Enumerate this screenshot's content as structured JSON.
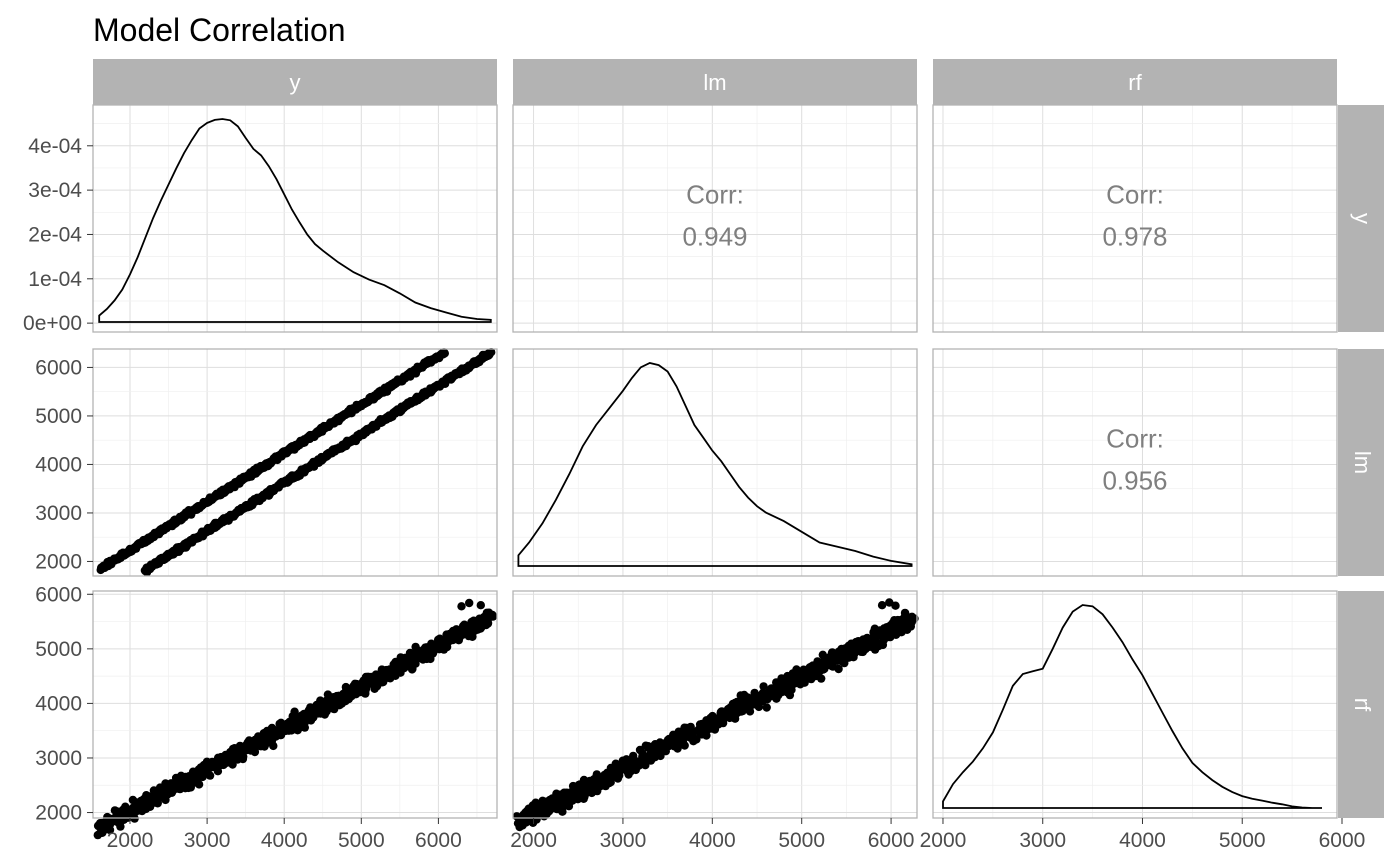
{
  "title": "Model Correlation",
  "strips": {
    "columns": [
      "y",
      "lm",
      "rf"
    ],
    "rows": [
      "y",
      "lm",
      "rf"
    ]
  },
  "colors": {
    "strip_bg": "#b3b3b3",
    "strip_text": "#ffffff",
    "points": "#000000",
    "grid": "#dedede",
    "corr_text": "#7f7f7f"
  },
  "chart_data": {
    "type": "scatter",
    "subtype": "pairs-matrix",
    "variables": [
      "y",
      "lm",
      "rf"
    ],
    "x_ranges": {
      "y": [
        1520,
        6760
      ],
      "lm": [
        1770,
        6290
      ],
      "rf": [
        1900,
        5950
      ]
    },
    "x_ticks": {
      "y": [
        2000,
        3000,
        4000,
        5000,
        6000
      ],
      "lm": [
        2000,
        3000,
        4000,
        5000,
        6000
      ],
      "rf": [
        2000,
        3000,
        4000,
        5000,
        6000
      ]
    },
    "y_ranges": {
      "y": [
        -2e-05,
        0.000492
      ],
      "lm": [
        1700,
        6380
      ],
      "rf": [
        1900,
        6060
      ]
    },
    "y_ticks": {
      "y": [
        0,
        0.0001,
        0.0002,
        0.0003,
        0.0004
      ],
      "lm": [
        2000,
        3000,
        4000,
        5000,
        6000
      ],
      "rf": [
        2000,
        3000,
        4000,
        5000,
        6000
      ]
    },
    "y_tick_labels": {
      "y": [
        "0e+00",
        "1e-04",
        "2e-04",
        "3e-04",
        "4e-04"
      ],
      "lm": [
        "2000",
        "3000",
        "4000",
        "5000",
        "6000"
      ],
      "rf": [
        "2000",
        "3000",
        "4000",
        "5000",
        "6000"
      ]
    },
    "correlations": [
      {
        "row": "y",
        "col": "lm",
        "label": "Corr:",
        "value": "0.949"
      },
      {
        "row": "y",
        "col": "rf",
        "label": "Corr:",
        "value": "0.978"
      },
      {
        "row": "lm",
        "col": "rf",
        "label": "Corr:",
        "value": "0.956"
      }
    ],
    "densities": {
      "y": {
        "x": [
          1600,
          1700,
          1800,
          1900,
          2000,
          2100,
          2200,
          2300,
          2400,
          2500,
          2600,
          2700,
          2800,
          2900,
          3000,
          3100,
          3200,
          3300,
          3400,
          3500,
          3600,
          3700,
          3800,
          3900,
          4000,
          4100,
          4200,
          4300,
          4400,
          4500,
          4700,
          4900,
          5100,
          5300,
          5500,
          5700,
          5900,
          6100,
          6300,
          6500,
          6680
        ],
        "density": [
          1.5e-05,
          3e-05,
          5e-05,
          7.5e-05,
          0.00011,
          0.00015,
          0.000195,
          0.00024,
          0.00028,
          0.000318,
          0.000355,
          0.00039,
          0.00042,
          0.000447,
          0.00046,
          0.000467,
          0.000469,
          0.000466,
          0.000452,
          0.000425,
          0.0004,
          0.000385,
          0.00036,
          0.00033,
          0.000295,
          0.00026,
          0.00023,
          0.000202,
          0.00018,
          0.000165,
          0.000138,
          0.000115,
          9.8e-05,
          8.5e-05,
          6.6e-05,
          4.5e-05,
          3.2e-05,
          2.2e-05,
          1.2e-05,
          7e-06,
          5e-06
        ]
      },
      "lm": {
        "x": [
          1830,
          1950,
          2100,
          2250,
          2400,
          2550,
          2700,
          2850,
          3000,
          3100,
          3200,
          3300,
          3400,
          3500,
          3600,
          3700,
          3800,
          3900,
          4000,
          4100,
          4200,
          4300,
          4400,
          4500,
          4600,
          4800,
          5000,
          5200,
          5400,
          5600,
          5800,
          6000,
          6230
        ],
        "density": [
          2.5e-05,
          5.5e-05,
          0.0001,
          0.000155,
          0.000215,
          0.00028,
          0.00033,
          0.00037,
          0.00041,
          0.00044,
          0.000465,
          0.000475,
          0.00047,
          0.000455,
          0.00042,
          0.000375,
          0.00033,
          0.0003,
          0.00027,
          0.000245,
          0.000215,
          0.000185,
          0.00016,
          0.00014,
          0.000125,
          0.000105,
          8e-05,
          5.5e-05,
          4.5e-05,
          3.5e-05,
          2.2e-05,
          1.2e-05,
          4e-06
        ]
      },
      "rf": {
        "x": [
          2000,
          2100,
          2200,
          2300,
          2400,
          2500,
          2600,
          2700,
          2800,
          2900,
          3000,
          3100,
          3200,
          3300,
          3400,
          3500,
          3600,
          3700,
          3800,
          3900,
          4000,
          4100,
          4200,
          4300,
          4400,
          4500,
          4600,
          4700,
          4800,
          4900,
          5000,
          5100,
          5200,
          5300,
          5400,
          5500,
          5600,
          5700,
          5800
        ],
        "density": [
          2.5e-05,
          9e-05,
          0.000135,
          0.000175,
          0.000225,
          0.000285,
          0.00037,
          0.00046,
          0.000505,
          0.000515,
          0.000525,
          0.0006,
          0.00068,
          0.00074,
          0.000765,
          0.00076,
          0.00073,
          0.00068,
          0.000625,
          0.00056,
          0.0005,
          0.00043,
          0.00036,
          0.00029,
          0.000225,
          0.00017,
          0.000135,
          0.000105,
          8e-05,
          6e-05,
          4.5e-05,
          3.5e-05,
          2.8e-05,
          2e-05,
          1.4e-05,
          6e-06,
          2e-06,
          0.0,
          0.0
        ]
      }
    },
    "scatter": [
      {
        "row": "lm",
        "col": "y",
        "bands": [
          {
            "x_from": 1620,
            "x_to": 6080,
            "intercept": 230,
            "slope": 1.0,
            "noise": 45
          },
          {
            "x_from": 2200,
            "x_to": 6680,
            "intercept": -375,
            "slope": 1.0,
            "noise": 45
          }
        ],
        "outliers": []
      },
      {
        "row": "rf",
        "col": "y",
        "bands": [
          {
            "x_from": 1600,
            "x_to": 6700,
            "intercept": 500,
            "slope": 0.76,
            "noise": 130
          }
        ],
        "outliers": [
          [
            6400,
            5840
          ],
          [
            6550,
            5800
          ],
          [
            6300,
            5780
          ]
        ]
      },
      {
        "row": "rf",
        "col": "lm",
        "bands": [
          {
            "x_from": 1830,
            "x_to": 6230,
            "intercept": 290,
            "slope": 0.84,
            "noise": 150
          }
        ],
        "outliers": [
          [
            5980,
            5850
          ],
          [
            6050,
            5790
          ],
          [
            5900,
            5800
          ]
        ]
      }
    ]
  }
}
